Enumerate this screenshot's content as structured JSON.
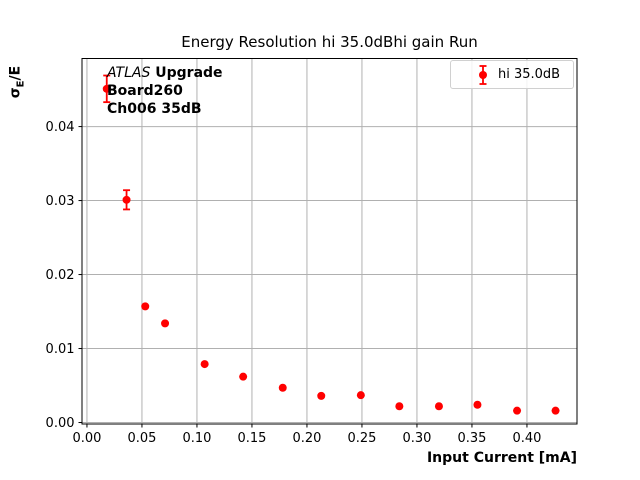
{
  "chart_data": {
    "type": "scatter",
    "title": "Energy Resolution hi 35.0dBhi gain Run",
    "xlabel": "Input Current [mA]",
    "ylabel_parts": {
      "symbol": "σ",
      "subscript": "E",
      "suffix": "/E"
    },
    "annotation": {
      "italic_part": "ATLAS",
      "bold_part": " Upgrade",
      "line2": "Board260",
      "line3": "Ch006 35dB"
    },
    "legend": {
      "label": "hi 35.0dB",
      "position": "upper right"
    },
    "grid": true,
    "grid_color": "#b0b0b0",
    "spine_color": "#000000",
    "xlim": [
      -0.0045,
      0.4455
    ],
    "ylim": [
      -0.0002,
      0.0492
    ],
    "xticks": [
      {
        "value": 0.0,
        "label": "0.00"
      },
      {
        "value": 0.05,
        "label": "0.05"
      },
      {
        "value": 0.1,
        "label": "0.10"
      },
      {
        "value": 0.15,
        "label": "0.15"
      },
      {
        "value": 0.2,
        "label": "0.20"
      },
      {
        "value": 0.25,
        "label": "0.25"
      },
      {
        "value": 0.3,
        "label": "0.30"
      },
      {
        "value": 0.35,
        "label": "0.35"
      },
      {
        "value": 0.4,
        "label": "0.40"
      }
    ],
    "yticks": [
      {
        "value": 0.0,
        "label": "0.00"
      },
      {
        "value": 0.01,
        "label": "0.01"
      },
      {
        "value": 0.02,
        "label": "0.02"
      },
      {
        "value": 0.03,
        "label": "0.03"
      },
      {
        "value": 0.04,
        "label": "0.04"
      }
    ],
    "series": [
      {
        "name": "hi 35.0dB",
        "color": "#ff0000",
        "marker": "circle",
        "x": [
          0.018,
          0.036,
          0.053,
          0.071,
          0.107,
          0.142,
          0.178,
          0.213,
          0.249,
          0.284,
          0.32,
          0.355,
          0.391,
          0.426
        ],
        "y": [
          0.0451,
          0.0301,
          0.0157,
          0.0134,
          0.0079,
          0.0062,
          0.0047,
          0.0036,
          0.0037,
          0.0022,
          0.0022,
          0.0024,
          0.0016,
          0.0016
        ],
        "yerr": [
          0.0018,
          0.0013,
          0.0005,
          0.0004,
          0.0003,
          0.0003,
          0.0002,
          0.0002,
          0.0002,
          0.0002,
          0.0002,
          0.0002,
          0.0001,
          0.0001
        ]
      }
    ]
  }
}
